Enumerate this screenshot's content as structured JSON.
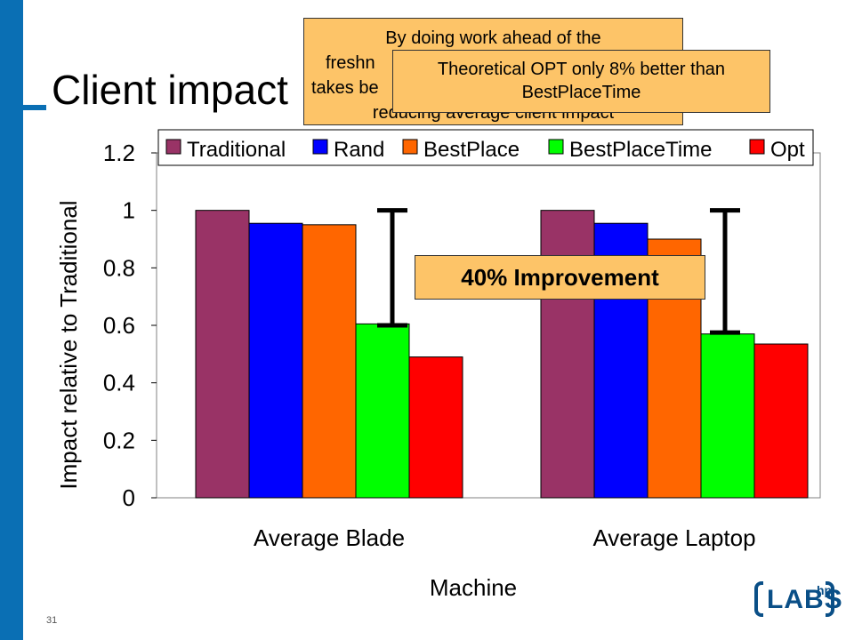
{
  "slide": {
    "title": "Client impact",
    "page_number": "31"
  },
  "callouts": {
    "first_lines": [
      "By doing work ahead of the",
      "freshn",
      "takes be",
      "reducing average client impact"
    ],
    "second": "Theoretical OPT only 8% better than BestPlaceTime",
    "improvement": "40% Improvement"
  },
  "logo": {
    "text": "LABS",
    "superscript": "hp"
  },
  "colors": {
    "accent_bar": "#0a6fb4",
    "callout_fill": "#fdc468"
  },
  "chart_data": {
    "type": "bar",
    "categories": [
      "Average Blade",
      "Average Laptop"
    ],
    "series": [
      {
        "name": "Traditional",
        "values": [
          1.0,
          1.0
        ],
        "color": "#993366"
      },
      {
        "name": "Rand",
        "values": [
          0.955,
          0.955
        ],
        "color": "#0000ff"
      },
      {
        "name": "BestPlace",
        "values": [
          0.95,
          0.9
        ],
        "color": "#ff6600"
      },
      {
        "name": "BestPlaceTime",
        "values": [
          0.605,
          0.57
        ],
        "color": "#00ff00"
      },
      {
        "name": "Opt",
        "values": [
          0.49,
          0.535
        ],
        "color": "#ff0000"
      }
    ],
    "error_bars": [
      {
        "category": "Average Blade",
        "from": 0.6,
        "to": 1.0
      },
      {
        "category": "Average Laptop",
        "from": 0.575,
        "to": 1.0
      }
    ],
    "ylim": [
      0,
      1.2
    ],
    "yticks": [
      "0",
      "0.2",
      "0.4",
      "0.6",
      "0.8",
      "1",
      "1.2"
    ],
    "xlabel": "Machine",
    "ylabel": "Impact relative to Traditional",
    "legend_position": "top",
    "grid": false
  }
}
